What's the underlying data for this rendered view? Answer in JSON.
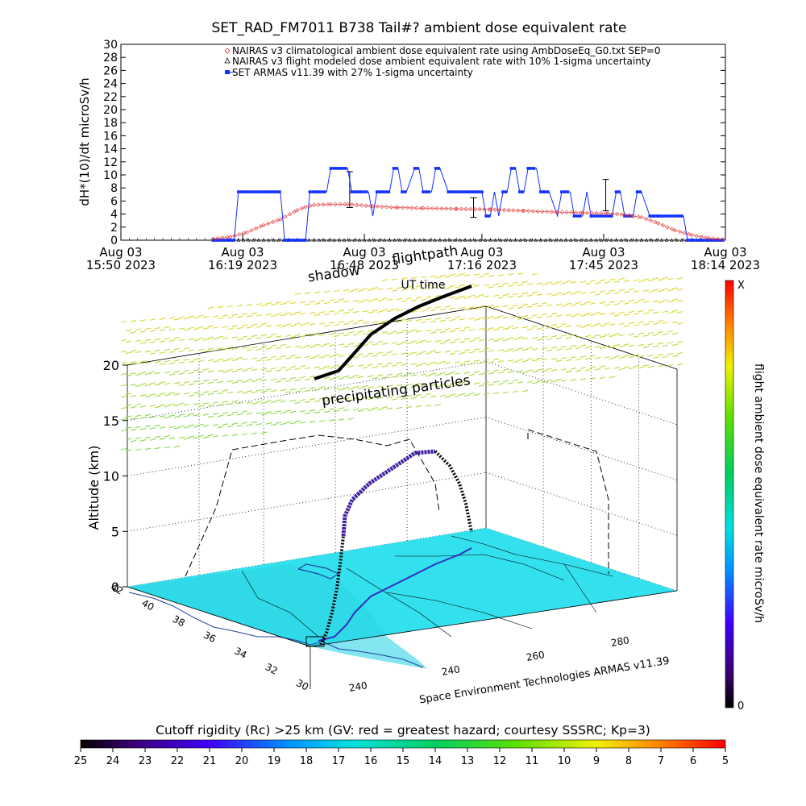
{
  "chart_data": [
    {
      "type": "line",
      "title": "SET_RAD_FM7011  B738 Tail#? ambient dose equivalent rate",
      "ylabel": "dH*(10)/dt microSv/h",
      "xlabel": "",
      "ylim": [
        0,
        30
      ],
      "yticks": [
        0,
        2,
        4,
        6,
        8,
        10,
        12,
        14,
        16,
        18,
        20,
        22,
        24,
        26,
        28,
        30
      ],
      "xlim_min": [
        0,
        144
      ],
      "xticks": [
        {
          "m": 0,
          "line1": "Aug 03",
          "line2": "15:50 2023"
        },
        {
          "m": 29,
          "line1": "Aug 03",
          "line2": "16:19 2023"
        },
        {
          "m": 58,
          "line1": "Aug 03",
          "line2": "16:48 2023"
        },
        {
          "m": 86,
          "line1": "Aug 03",
          "line2": "17:16 2023"
        },
        {
          "m": 115,
          "line1": "Aug 03",
          "line2": "17:45 2023"
        },
        {
          "m": 144,
          "line1": "Aug 03",
          "line2": "18:14 2023"
        }
      ],
      "legend_position": "top-right",
      "series": [
        {
          "name": "NAIRAS v3 climatological ambient dose equivalent rate using AmbDoseEq_G0.txt SEP=0",
          "marker": "diamond",
          "color": "#e03030",
          "x": [
            22,
            26,
            30,
            34,
            38,
            42,
            44,
            46,
            50,
            54,
            60,
            66,
            72,
            80,
            88,
            96,
            104,
            110,
            116,
            120,
            124,
            128,
            132,
            136,
            140,
            144
          ],
          "y": [
            0.2,
            0.5,
            1.2,
            2.3,
            3.2,
            4.6,
            5.1,
            5.4,
            5.5,
            5.5,
            5.2,
            5.0,
            4.9,
            4.8,
            4.7,
            4.5,
            4.3,
            4.2,
            4.1,
            3.9,
            3.5,
            2.6,
            1.5,
            0.8,
            0.3,
            0.1
          ]
        },
        {
          "name": "NAIRAS v3 flight modeled dose ambient equivalent rate with 10% 1-sigma uncertainty",
          "marker": "triangle",
          "color": "#000000",
          "x": [
            22,
            144
          ],
          "y": [
            0,
            0
          ],
          "errorbars": [
            {
              "x": 54.5,
              "y": 6.5,
              "lo": 5.0,
              "hi": 10.5
            },
            {
              "x": 84.0,
              "y": 4.8,
              "lo": 3.5,
              "hi": 6.5
            },
            {
              "x": 115.5,
              "y": 5.5,
              "lo": 4.5,
              "hi": 9.3
            }
          ]
        },
        {
          "name": "SET ARMAS v11.39 with 27% 1-sigma uncertainty",
          "marker": "square",
          "color": "#1030ff",
          "x": [
            22,
            27,
            28,
            38,
            39,
            44,
            45,
            49,
            50,
            54,
            55,
            59,
            60,
            61,
            64,
            65,
            66,
            67,
            68,
            70,
            71,
            72,
            74,
            75,
            76,
            78,
            79,
            86,
            87,
            88,
            89,
            90,
            91,
            92,
            93,
            94,
            95,
            96,
            97,
            99,
            100,
            101,
            102,
            104,
            105,
            107,
            108,
            110,
            111,
            112,
            117,
            118,
            119,
            120,
            121,
            122,
            123,
            124,
            126,
            127,
            128,
            134,
            135,
            144
          ],
          "y": [
            0,
            0,
            7.4,
            7.4,
            0,
            0,
            7.4,
            7.4,
            11,
            11,
            7.4,
            7.4,
            3.7,
            7.4,
            7.4,
            11,
            11,
            7.4,
            7.4,
            11,
            11,
            7.4,
            7.4,
            11,
            11,
            7.4,
            7.4,
            7.4,
            3.7,
            3.7,
            7.4,
            3.7,
            7.4,
            7.4,
            11,
            11,
            7.4,
            7.4,
            11,
            11,
            7.4,
            7.4,
            7.4,
            3.7,
            7.4,
            7.4,
            3.7,
            3.7,
            7.4,
            3.7,
            3.7,
            7.4,
            7.4,
            3.7,
            3.7,
            3.7,
            7.4,
            7.4,
            3.7,
            3.7,
            3.7,
            3.7,
            0,
            0
          ]
        }
      ]
    },
    {
      "type": "scatter",
      "ylabel": "Altitude (km)",
      "zlim": [
        0,
        20
      ],
      "zticks": [
        0,
        5,
        10,
        15,
        20
      ],
      "lat_ticks": [
        "42",
        "40",
        "38",
        "36",
        "34",
        "32",
        "30"
      ],
      "lon_ticks": [
        "240",
        "240",
        "260",
        "280"
      ],
      "series": [
        {
          "name": "flightpath",
          "color": "#000000"
        },
        {
          "name": "precipitating particles",
          "color": "#b0d030"
        },
        {
          "name": "shadow",
          "color": "#000000"
        }
      ]
    }
  ],
  "annotations": {
    "shadow": "shadow",
    "flightpath": "flightpath",
    "ut_time": "UT time",
    "precipitating": "precipitating particles",
    "credit": "Space Environment Technologies ARMAS v11.39"
  },
  "right_colorbar": {
    "label": "flight ambient dose equivalent rate microSv/h",
    "top": "X",
    "bottom": "0"
  },
  "bottom_colorbar": {
    "title": "Cutoff rigidity (Rc) >25 km (GV: red = greatest hazard; courtesy SSSRC; Kp=3)",
    "ticks": [
      "25",
      "24",
      "23",
      "22",
      "21",
      "20",
      "19",
      "18",
      "17",
      "16",
      "15",
      "14",
      "13",
      "12",
      "11",
      "10",
      "9",
      "8",
      "7",
      "6",
      "5"
    ]
  }
}
